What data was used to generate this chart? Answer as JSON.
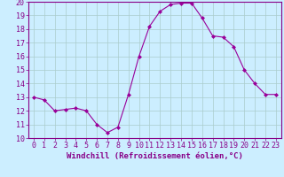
{
  "x": [
    0,
    1,
    2,
    3,
    4,
    5,
    6,
    7,
    8,
    9,
    10,
    11,
    12,
    13,
    14,
    15,
    16,
    17,
    18,
    19,
    20,
    21,
    22,
    23
  ],
  "y": [
    13.0,
    12.8,
    12.0,
    12.1,
    12.2,
    12.0,
    11.0,
    10.4,
    10.8,
    13.2,
    16.0,
    18.2,
    19.3,
    19.8,
    19.9,
    19.9,
    18.8,
    17.5,
    17.4,
    16.7,
    15.0,
    14.0,
    13.2,
    13.2
  ],
  "line_color": "#990099",
  "marker": "D",
  "marker_size": 2,
  "bg_color": "#cceeff",
  "grid_color": "#aacccc",
  "xlabel": "Windchill (Refroidissement éolien,°C)",
  "xlim": [
    -0.5,
    23.5
  ],
  "ylim": [
    10,
    20
  ],
  "yticks": [
    10,
    11,
    12,
    13,
    14,
    15,
    16,
    17,
    18,
    19,
    20
  ],
  "xticks": [
    0,
    1,
    2,
    3,
    4,
    5,
    6,
    7,
    8,
    9,
    10,
    11,
    12,
    13,
    14,
    15,
    16,
    17,
    18,
    19,
    20,
    21,
    22,
    23
  ],
  "xlabel_fontsize": 6.5,
  "tick_fontsize": 6,
  "text_color": "#880088"
}
